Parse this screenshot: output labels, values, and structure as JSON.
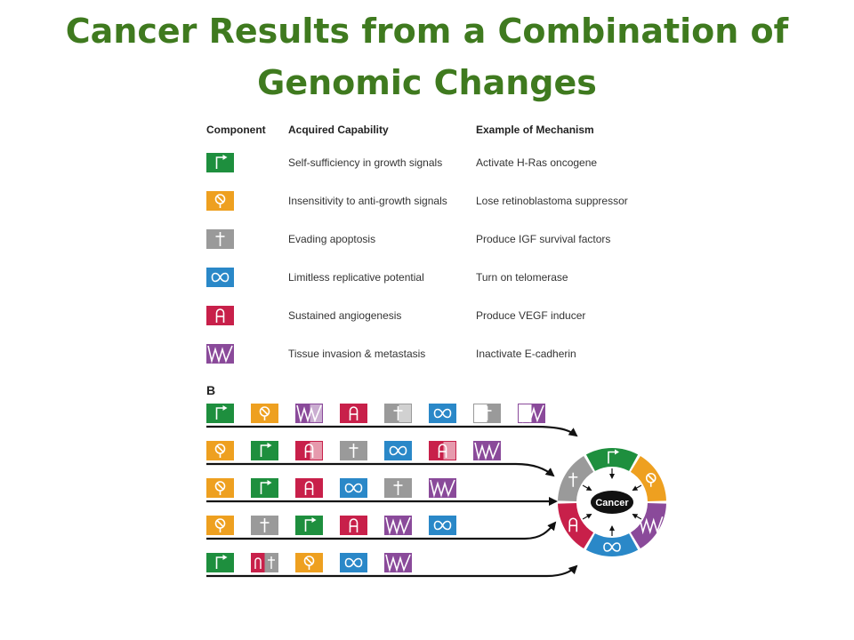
{
  "title": {
    "line1": "Cancer Results from a Combination of",
    "line2": "Genomic Changes"
  },
  "colors": {
    "title": "#3f7a1f",
    "green": "#1e8f3e",
    "orange": "#eea020",
    "gray": "#9a9a9a",
    "blue": "#2a88c8",
    "red": "#c8204a",
    "purple": "#8a4a9a"
  },
  "table": {
    "headers": {
      "component": "Component",
      "capability": "Acquired Capability",
      "mechanism": "Example of Mechanism"
    },
    "rows": [
      {
        "icon": "arrow-flag-icon",
        "color": "green",
        "capability": "Self-sufficiency in growth signals",
        "mechanism": "Activate H-Ras oncogene"
      },
      {
        "icon": "no-entry-icon",
        "color": "orange",
        "capability": "Insensitivity to anti-growth signals",
        "mechanism": "Lose retinoblastoma suppressor"
      },
      {
        "icon": "cross-icon",
        "color": "gray",
        "capability": "Evading apoptosis",
        "mechanism": "Produce IGF survival factors"
      },
      {
        "icon": "infinity-icon",
        "color": "blue",
        "capability": "Limitless replicative potential",
        "mechanism": "Turn on telomerase"
      },
      {
        "icon": "vessel-icon",
        "color": "red",
        "capability": "Sustained angiogenesis",
        "mechanism": "Produce VEGF inducer"
      },
      {
        "icon": "invasion-icon",
        "color": "purple",
        "capability": "Tissue invasion & metastasis",
        "mechanism": "Inactivate E-cadherin"
      }
    ]
  },
  "panel_b": {
    "label": "B",
    "center_label": "Cancer",
    "pathways": [
      [
        {
          "c": "green"
        },
        {
          "c": "orange"
        },
        {
          "c": "purple",
          "half": true
        },
        {
          "c": "red"
        },
        {
          "c": "gray",
          "half": true
        },
        {
          "c": "blue"
        },
        {
          "c": "gray",
          "half": true,
          "outline": true
        },
        {
          "c": "purple",
          "half": true,
          "outline": true
        }
      ],
      [
        {
          "c": "orange"
        },
        {
          "c": "green"
        },
        {
          "c": "red",
          "half": true
        },
        {
          "c": "gray"
        },
        {
          "c": "blue"
        },
        {
          "c": "red",
          "half": true
        },
        {
          "c": "purple"
        }
      ],
      [
        {
          "c": "orange"
        },
        {
          "c": "green"
        },
        {
          "c": "red"
        },
        {
          "c": "blue"
        },
        {
          "c": "gray"
        },
        {
          "c": "purple"
        }
      ],
      [
        {
          "c": "orange"
        },
        {
          "c": "gray"
        },
        {
          "c": "green"
        },
        {
          "c": "red"
        },
        {
          "c": "purple"
        },
        {
          "c": "blue"
        }
      ],
      [
        {
          "c": "green"
        },
        {
          "c": "red_gray"
        },
        {
          "c": "orange"
        },
        {
          "c": "blue"
        },
        {
          "c": "purple"
        }
      ]
    ],
    "ring_order": [
      "green",
      "orange",
      "purple",
      "blue",
      "red",
      "gray"
    ]
  }
}
